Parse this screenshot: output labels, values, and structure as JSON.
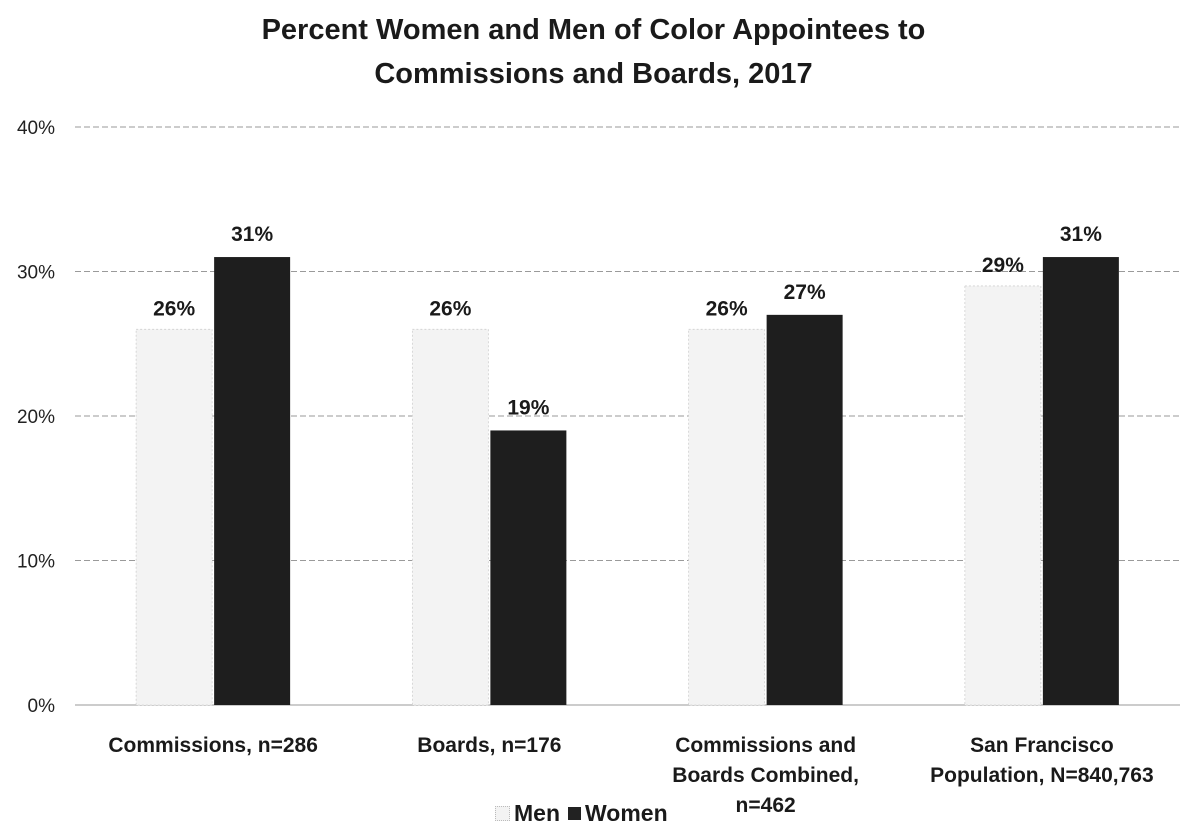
{
  "chart_data": {
    "type": "bar",
    "title_lines": [
      "Percent Women and Men of Color Appointees to",
      "Commissions and Boards, 2017"
    ],
    "categories": [
      [
        "Commissions, n=286"
      ],
      [
        "Boards, n=176"
      ],
      [
        "Commissions and",
        "Boards Combined,",
        "n=462"
      ],
      [
        "San Francisco",
        "Population, N=840,763"
      ]
    ],
    "series": [
      {
        "name": "Men",
        "values": [
          26,
          26,
          26,
          29
        ],
        "labels": [
          "26%",
          "26%",
          "26%",
          "29%"
        ],
        "color": "#f3f3f3"
      },
      {
        "name": "Women",
        "values": [
          31,
          19,
          27,
          31
        ],
        "labels": [
          "31%",
          "19%",
          "27%",
          "31%"
        ],
        "color": "#1e1e1e"
      }
    ],
    "yticks": [
      0,
      10,
      20,
      30,
      40
    ],
    "ytick_labels": [
      "0%",
      "10%",
      "20%",
      "30%",
      "40%"
    ],
    "ylim": [
      0,
      40
    ],
    "grid": true,
    "legend_position": "bottom"
  }
}
